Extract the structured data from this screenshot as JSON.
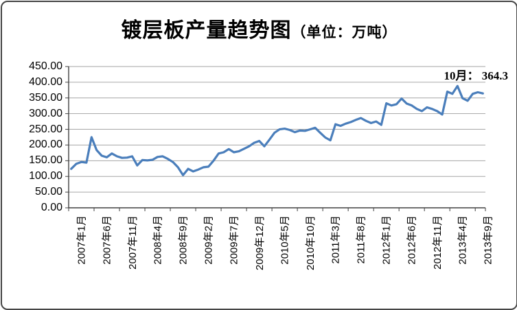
{
  "title": {
    "main": "镀层板产量趋势图",
    "unit": "（单位：万吨）"
  },
  "annotation": "10月： 364.3",
  "colors": {
    "line": "#4a7ebb",
    "grid": "#a6a6a6",
    "axis": "#404040",
    "text": "#000000",
    "frame_border": "#454545"
  },
  "chart_data": {
    "type": "line",
    "title": "镀层板产量趋势图（单位：万吨）",
    "xlabel": "",
    "ylabel": "",
    "ylim": [
      0,
      450
    ],
    "y_tick_step": 50,
    "grid": true,
    "legend": false,
    "markers": false,
    "x_range": "2007年1月 — 2013年10月 (monthly, 82 points)",
    "x_tick_labels": [
      "2007年1月",
      "2007年6月",
      "2007年11月",
      "2008年4月",
      "2008年9月",
      "2009年2月",
      "2009年7月",
      "2009年12月",
      "2010年5月",
      "2010年10月",
      "2011年3月",
      "2011年8月",
      "2012年1月",
      "2012年6月",
      "2012年11月",
      "2013年4月",
      "2013年9月"
    ],
    "y_tick_labels": [
      "450.00",
      "400.00",
      "350.00",
      "300.00",
      "250.00",
      "200.00",
      "150.00",
      "100.00",
      "50.00",
      "0.00"
    ],
    "values": [
      124,
      140,
      146,
      144,
      225,
      184,
      166,
      161,
      173,
      164,
      159,
      160,
      164,
      135,
      152,
      151,
      153,
      162,
      164,
      156,
      146,
      129,
      104,
      124,
      116,
      122,
      129,
      131,
      150,
      173,
      177,
      187,
      177,
      180,
      188,
      196,
      207,
      213,
      196,
      217,
      239,
      250,
      252,
      248,
      241,
      246,
      245,
      250,
      255,
      239,
      224,
      215,
      266,
      261,
      268,
      273,
      280,
      286,
      277,
      270,
      275,
      264,
      333,
      326,
      330,
      348,
      332,
      326,
      315,
      308,
      320,
      315,
      308,
      297,
      370,
      363,
      388,
      349,
      341,
      363,
      368,
      364.3
    ],
    "annotation": {
      "text": "10月： 364.3",
      "month": "10月",
      "value": 364.3
    }
  }
}
